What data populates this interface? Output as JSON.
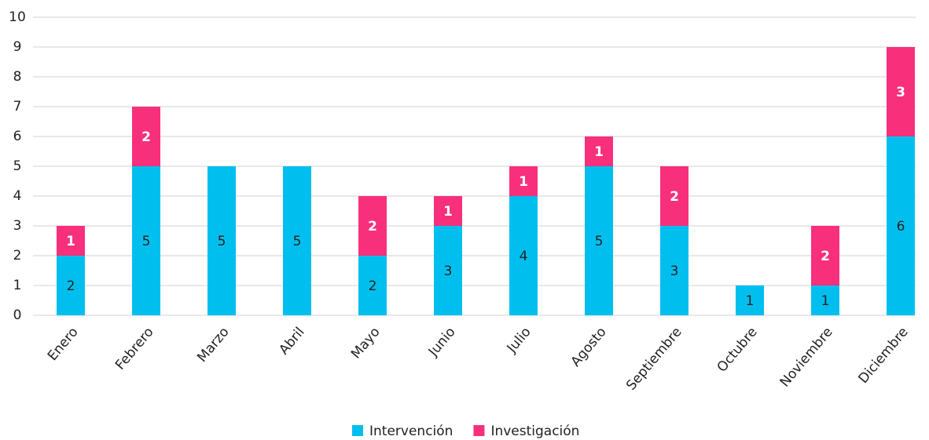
{
  "chart_data": {
    "type": "stacked_bar",
    "categories": [
      "Enero",
      "Febrero",
      "Marzo",
      "Abril",
      "Mayo",
      "Junio",
      "Julio",
      "Agosto",
      "Septiembre",
      "Octubre",
      "Noviembre",
      "Diciembre"
    ],
    "series": [
      {
        "name": "Intervención",
        "color": "#00bfef",
        "values": [
          2,
          5,
          5,
          5,
          2,
          3,
          4,
          5,
          3,
          1,
          1,
          6
        ]
      },
      {
        "name": "Investigación",
        "color": "#f8307c",
        "values": [
          1,
          2,
          0,
          0,
          2,
          1,
          1,
          1,
          2,
          0,
          2,
          3
        ]
      }
    ],
    "ylim": [
      0,
      10
    ],
    "yticks": [
      0,
      1,
      2,
      3,
      4,
      5,
      6,
      7,
      8,
      9,
      10
    ],
    "grid": true,
    "legend": "bottom"
  }
}
